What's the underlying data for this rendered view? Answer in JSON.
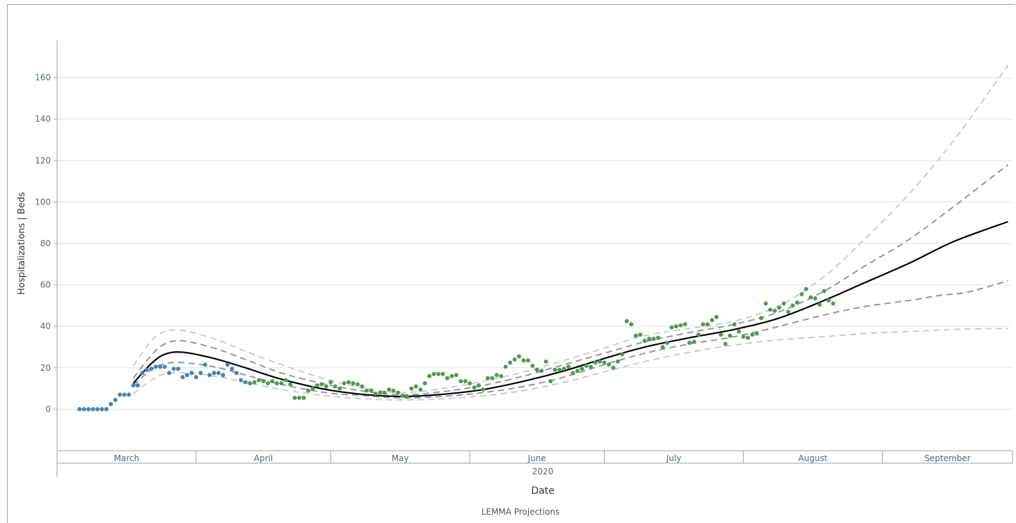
{
  "chart_data": {
    "type": "line",
    "ylabel": "Hospitalizations | Beds",
    "xlabel": "Date",
    "year_label": "2020",
    "legend_title": "LEMMA Projections",
    "ylim": [
      -20,
      178
    ],
    "yticks": [
      0,
      20,
      40,
      60,
      80,
      100,
      120,
      140,
      160
    ],
    "x_start": "2020-03-01",
    "x_end": "2020-09-30",
    "grid": true,
    "months": [
      {
        "label": "March",
        "start": "2020-03-01",
        "end": "2020-04-01"
      },
      {
        "label": "April",
        "start": "2020-04-01",
        "end": "2020-05-01"
      },
      {
        "label": "May",
        "start": "2020-05-01",
        "end": "2020-06-01"
      },
      {
        "label": "June",
        "start": "2020-06-01",
        "end": "2020-07-01"
      },
      {
        "label": "July",
        "start": "2020-07-01",
        "end": "2020-08-01"
      },
      {
        "label": "August",
        "start": "2020-08-01",
        "end": "2020-09-01"
      },
      {
        "label": "September",
        "start": "2020-09-01",
        "end": "2020-09-30"
      }
    ],
    "observed_blue": {
      "color": "#4682b4",
      "points": [
        [
          "2020-03-06",
          0
        ],
        [
          "2020-03-07",
          0
        ],
        [
          "2020-03-08",
          0
        ],
        [
          "2020-03-09",
          0
        ],
        [
          "2020-03-10",
          0
        ],
        [
          "2020-03-11",
          0
        ],
        [
          "2020-03-12",
          0
        ],
        [
          "2020-03-13",
          2.5
        ],
        [
          "2020-03-14",
          4.5
        ],
        [
          "2020-03-15",
          7
        ],
        [
          "2020-03-16",
          7
        ],
        [
          "2020-03-17",
          7
        ],
        [
          "2020-03-18",
          11.5
        ],
        [
          "2020-03-19",
          11.5
        ],
        [
          "2020-03-20",
          17.5
        ],
        [
          "2020-03-21",
          19
        ],
        [
          "2020-03-22",
          19.5
        ],
        [
          "2020-03-23",
          20.5
        ],
        [
          "2020-03-24",
          20.5
        ],
        [
          "2020-03-25",
          20.5
        ],
        [
          "2020-03-26",
          17.5
        ],
        [
          "2020-03-27",
          19.5
        ],
        [
          "2020-03-28",
          19.5
        ],
        [
          "2020-03-29",
          15.5
        ],
        [
          "2020-03-30",
          16.5
        ],
        [
          "2020-03-31",
          17.5
        ],
        [
          "2020-04-01",
          15.5
        ],
        [
          "2020-04-02",
          17.5
        ],
        [
          "2020-04-03",
          21.5
        ],
        [
          "2020-04-04",
          16.5
        ],
        [
          "2020-04-05",
          17.5
        ],
        [
          "2020-04-06",
          17.5
        ],
        [
          "2020-04-07",
          16.5
        ],
        [
          "2020-04-08",
          21.5
        ],
        [
          "2020-04-09",
          19.5
        ],
        [
          "2020-04-10",
          17.5
        ],
        [
          "2020-04-11",
          14
        ],
        [
          "2020-04-12",
          13
        ]
      ]
    },
    "observed_green": {
      "color": "#4f9a4f",
      "points": [
        [
          "2020-04-13",
          12.5
        ],
        [
          "2020-04-14",
          13
        ],
        [
          "2020-04-15",
          14
        ],
        [
          "2020-04-16",
          13.5
        ],
        [
          "2020-04-17",
          12.5
        ],
        [
          "2020-04-18",
          13.5
        ],
        [
          "2020-04-19",
          12.5
        ],
        [
          "2020-04-20",
          12.5
        ],
        [
          "2020-04-21",
          14
        ],
        [
          "2020-04-22",
          12
        ],
        [
          "2020-04-23",
          5.5
        ],
        [
          "2020-04-24",
          5.5
        ],
        [
          "2020-04-25",
          5.5
        ],
        [
          "2020-04-26",
          9
        ],
        [
          "2020-04-27",
          10
        ],
        [
          "2020-04-28",
          11.5
        ],
        [
          "2020-04-29",
          12
        ],
        [
          "2020-04-30",
          11
        ],
        [
          "2020-05-01",
          13
        ],
        [
          "2020-05-02",
          11
        ],
        [
          "2020-05-03",
          10
        ],
        [
          "2020-05-04",
          12.5
        ],
        [
          "2020-05-05",
          13
        ],
        [
          "2020-05-06",
          12.5
        ],
        [
          "2020-05-07",
          12
        ],
        [
          "2020-05-08",
          11
        ],
        [
          "2020-05-09",
          9
        ],
        [
          "2020-05-10",
          9
        ],
        [
          "2020-05-11",
          7.5
        ],
        [
          "2020-05-12",
          8
        ],
        [
          "2020-05-13",
          8
        ],
        [
          "2020-05-14",
          9.5
        ],
        [
          "2020-05-15",
          9
        ],
        [
          "2020-05-16",
          8
        ],
        [
          "2020-05-17",
          6.5
        ],
        [
          "2020-05-18",
          6
        ],
        [
          "2020-05-19",
          10
        ],
        [
          "2020-05-20",
          11
        ],
        [
          "2020-05-21",
          9.5
        ],
        [
          "2020-05-22",
          12.5
        ],
        [
          "2020-05-23",
          16
        ],
        [
          "2020-05-24",
          17
        ],
        [
          "2020-05-25",
          17
        ],
        [
          "2020-05-26",
          17
        ],
        [
          "2020-05-27",
          15
        ],
        [
          "2020-05-28",
          16
        ],
        [
          "2020-05-29",
          16.5
        ],
        [
          "2020-05-30",
          13.5
        ],
        [
          "2020-05-31",
          13.5
        ],
        [
          "2020-06-01",
          12.5
        ],
        [
          "2020-06-02",
          10.5
        ],
        [
          "2020-06-03",
          11.5
        ],
        [
          "2020-06-04",
          9.5
        ],
        [
          "2020-06-05",
          15
        ],
        [
          "2020-06-06",
          15
        ],
        [
          "2020-06-07",
          16.5
        ],
        [
          "2020-06-08",
          16
        ],
        [
          "2020-06-09",
          20.5
        ],
        [
          "2020-06-10",
          22.5
        ],
        [
          "2020-06-11",
          24
        ],
        [
          "2020-06-12",
          25.5
        ],
        [
          "2020-06-13",
          23.5
        ],
        [
          "2020-06-14",
          23.5
        ],
        [
          "2020-06-15",
          21
        ],
        [
          "2020-06-16",
          19
        ],
        [
          "2020-06-17",
          18.5
        ],
        [
          "2020-06-18",
          23
        ],
        [
          "2020-06-19",
          13.5
        ],
        [
          "2020-06-20",
          19
        ],
        [
          "2020-06-21",
          19
        ],
        [
          "2020-06-22",
          19.5
        ],
        [
          "2020-06-23",
          20.5
        ],
        [
          "2020-06-24",
          17.5
        ],
        [
          "2020-06-25",
          18.5
        ],
        [
          "2020-06-26",
          19.5
        ],
        [
          "2020-06-27",
          21
        ],
        [
          "2020-06-28",
          20.5
        ],
        [
          "2020-06-29",
          22.5
        ],
        [
          "2020-06-30",
          23
        ],
        [
          "2020-07-01",
          22.5
        ],
        [
          "2020-07-02",
          21.5
        ],
        [
          "2020-07-03",
          20
        ],
        [
          "2020-07-04",
          23
        ],
        [
          "2020-07-05",
          26.5
        ],
        [
          "2020-07-06",
          42.5
        ],
        [
          "2020-07-07",
          41
        ],
        [
          "2020-07-08",
          35.5
        ],
        [
          "2020-07-09",
          36
        ],
        [
          "2020-07-10",
          33
        ],
        [
          "2020-07-11",
          34
        ],
        [
          "2020-07-12",
          34
        ],
        [
          "2020-07-13",
          34.5
        ],
        [
          "2020-07-14",
          30
        ],
        [
          "2020-07-15",
          32
        ],
        [
          "2020-07-16",
          39.5
        ],
        [
          "2020-07-17",
          40
        ],
        [
          "2020-07-18",
          40.5
        ],
        [
          "2020-07-19",
          41
        ],
        [
          "2020-07-20",
          32
        ],
        [
          "2020-07-21",
          32.5
        ],
        [
          "2020-07-22",
          36
        ],
        [
          "2020-07-23",
          41
        ],
        [
          "2020-07-24",
          41
        ],
        [
          "2020-07-25",
          43
        ],
        [
          "2020-07-26",
          44.5
        ],
        [
          "2020-07-27",
          36
        ],
        [
          "2020-07-28",
          31.5
        ],
        [
          "2020-07-29",
          35.5
        ],
        [
          "2020-07-30",
          41
        ],
        [
          "2020-07-31",
          37.5
        ],
        [
          "2020-08-01",
          35
        ],
        [
          "2020-08-02",
          34.5
        ],
        [
          "2020-08-03",
          36
        ],
        [
          "2020-08-04",
          36.5
        ],
        [
          "2020-08-05",
          44
        ],
        [
          "2020-08-06",
          51
        ],
        [
          "2020-08-07",
          48
        ],
        [
          "2020-08-08",
          47.5
        ],
        [
          "2020-08-09",
          49
        ],
        [
          "2020-08-10",
          51
        ],
        [
          "2020-08-11",
          47
        ],
        [
          "2020-08-12",
          50
        ],
        [
          "2020-08-13",
          51.5
        ],
        [
          "2020-08-14",
          55.5
        ],
        [
          "2020-08-15",
          58
        ],
        [
          "2020-08-16",
          54
        ],
        [
          "2020-08-17",
          53.5
        ],
        [
          "2020-08-18",
          50.5
        ],
        [
          "2020-08-19",
          57
        ],
        [
          "2020-08-20",
          52.5
        ],
        [
          "2020-08-21",
          51
        ]
      ]
    },
    "series": [
      {
        "color": "#000000",
        "dash": false,
        "values": [
          [
            "2020-03-18",
            12.5
          ],
          [
            "2020-03-22",
            22
          ],
          [
            "2020-03-25",
            26.5
          ],
          [
            "2020-03-29",
            27.5
          ],
          [
            "2020-04-05",
            24.5
          ],
          [
            "2020-04-12",
            20
          ],
          [
            "2020-04-20",
            14.5
          ],
          [
            "2020-04-30",
            9.5
          ],
          [
            "2020-05-09",
            7
          ],
          [
            "2020-05-17",
            6.2
          ],
          [
            "2020-05-26",
            7.2
          ],
          [
            "2020-06-04",
            9.5
          ],
          [
            "2020-06-13",
            13.5
          ],
          [
            "2020-06-22",
            18.5
          ],
          [
            "2020-07-01",
            24.5
          ],
          [
            "2020-07-10",
            30
          ],
          [
            "2020-07-20",
            34.5
          ],
          [
            "2020-07-30",
            38.5
          ],
          [
            "2020-08-09",
            44
          ],
          [
            "2020-08-19",
            52.5
          ],
          [
            "2020-08-28",
            61
          ],
          [
            "2020-09-07",
            70.5
          ],
          [
            "2020-09-17",
            81
          ],
          [
            "2020-09-29",
            90.5
          ]
        ]
      },
      {
        "color": "#8f99a3",
        "dash": true,
        "values": [
          [
            "2020-03-18",
            15
          ],
          [
            "2020-03-22",
            26
          ],
          [
            "2020-03-25",
            31.5
          ],
          [
            "2020-03-29",
            33
          ],
          [
            "2020-04-05",
            29.5
          ],
          [
            "2020-04-12",
            24
          ],
          [
            "2020-04-20",
            17.5
          ],
          [
            "2020-04-30",
            12
          ],
          [
            "2020-05-09",
            8.5
          ],
          [
            "2020-05-17",
            7
          ],
          [
            "2020-05-26",
            8.5
          ],
          [
            "2020-06-04",
            11.5
          ],
          [
            "2020-06-13",
            16
          ],
          [
            "2020-06-22",
            21.5
          ],
          [
            "2020-07-01",
            27
          ],
          [
            "2020-07-10",
            32.5
          ],
          [
            "2020-07-20",
            37
          ],
          [
            "2020-07-30",
            41
          ],
          [
            "2020-08-09",
            47
          ],
          [
            "2020-08-19",
            57
          ],
          [
            "2020-08-28",
            69
          ],
          [
            "2020-09-07",
            82
          ],
          [
            "2020-09-17",
            98
          ],
          [
            "2020-09-29",
            118
          ]
        ]
      },
      {
        "color": "#8f99a3",
        "dash": true,
        "values": [
          [
            "2020-03-18",
            11.5
          ],
          [
            "2020-03-22",
            19
          ],
          [
            "2020-03-25",
            22
          ],
          [
            "2020-03-29",
            22.5
          ],
          [
            "2020-04-05",
            20.5
          ],
          [
            "2020-04-12",
            16.5
          ],
          [
            "2020-04-20",
            12
          ],
          [
            "2020-04-30",
            8
          ],
          [
            "2020-05-09",
            6.5
          ],
          [
            "2020-05-17",
            5.5
          ],
          [
            "2020-05-26",
            6.2
          ],
          [
            "2020-06-04",
            8
          ],
          [
            "2020-06-13",
            11
          ],
          [
            "2020-06-22",
            15.5
          ],
          [
            "2020-07-01",
            21.5
          ],
          [
            "2020-07-10",
            27
          ],
          [
            "2020-07-20",
            31.5
          ],
          [
            "2020-07-30",
            35
          ],
          [
            "2020-08-09",
            40
          ],
          [
            "2020-08-19",
            45.5
          ],
          [
            "2020-08-28",
            49.5
          ],
          [
            "2020-09-07",
            52.5
          ],
          [
            "2020-09-14",
            55
          ],
          [
            "2020-09-20",
            56.5
          ],
          [
            "2020-09-29",
            62
          ]
        ]
      },
      {
        "color": "#c8cdd2",
        "dash": true,
        "values": [
          [
            "2020-03-18",
            21
          ],
          [
            "2020-03-22",
            33
          ],
          [
            "2020-03-25",
            37.5
          ],
          [
            "2020-03-29",
            38
          ],
          [
            "2020-04-05",
            34
          ],
          [
            "2020-04-12",
            28
          ],
          [
            "2020-04-20",
            21.5
          ],
          [
            "2020-04-30",
            14.5
          ],
          [
            "2020-05-09",
            10
          ],
          [
            "2020-05-17",
            8
          ],
          [
            "2020-05-26",
            10
          ],
          [
            "2020-06-04",
            13.5
          ],
          [
            "2020-06-13",
            18
          ],
          [
            "2020-06-22",
            23.5
          ],
          [
            "2020-07-01",
            29.5
          ],
          [
            "2020-07-10",
            35.5
          ],
          [
            "2020-07-20",
            39
          ],
          [
            "2020-07-30",
            42.5
          ],
          [
            "2020-08-09",
            50
          ],
          [
            "2020-08-19",
            64
          ],
          [
            "2020-08-28",
            82
          ],
          [
            "2020-09-07",
            104
          ],
          [
            "2020-09-17",
            130
          ],
          [
            "2020-09-29",
            166
          ]
        ]
      },
      {
        "color": "#c8cdd2",
        "dash": true,
        "values": [
          [
            "2020-03-18",
            7.5
          ],
          [
            "2020-03-22",
            14
          ],
          [
            "2020-03-25",
            17
          ],
          [
            "2020-03-29",
            17.5
          ],
          [
            "2020-04-05",
            16
          ],
          [
            "2020-04-12",
            13
          ],
          [
            "2020-04-20",
            9.5
          ],
          [
            "2020-04-30",
            6.5
          ],
          [
            "2020-05-09",
            5
          ],
          [
            "2020-05-17",
            4.5
          ],
          [
            "2020-05-26",
            5
          ],
          [
            "2020-06-04",
            6.5
          ],
          [
            "2020-06-13",
            9
          ],
          [
            "2020-06-22",
            13
          ],
          [
            "2020-07-01",
            18
          ],
          [
            "2020-07-10",
            23
          ],
          [
            "2020-07-20",
            27.5
          ],
          [
            "2020-07-30",
            31
          ],
          [
            "2020-08-09",
            33.5
          ],
          [
            "2020-08-19",
            35
          ],
          [
            "2020-08-28",
            36.5
          ],
          [
            "2020-09-07",
            37.5
          ],
          [
            "2020-09-17",
            38.5
          ],
          [
            "2020-09-29",
            39
          ]
        ]
      }
    ]
  }
}
